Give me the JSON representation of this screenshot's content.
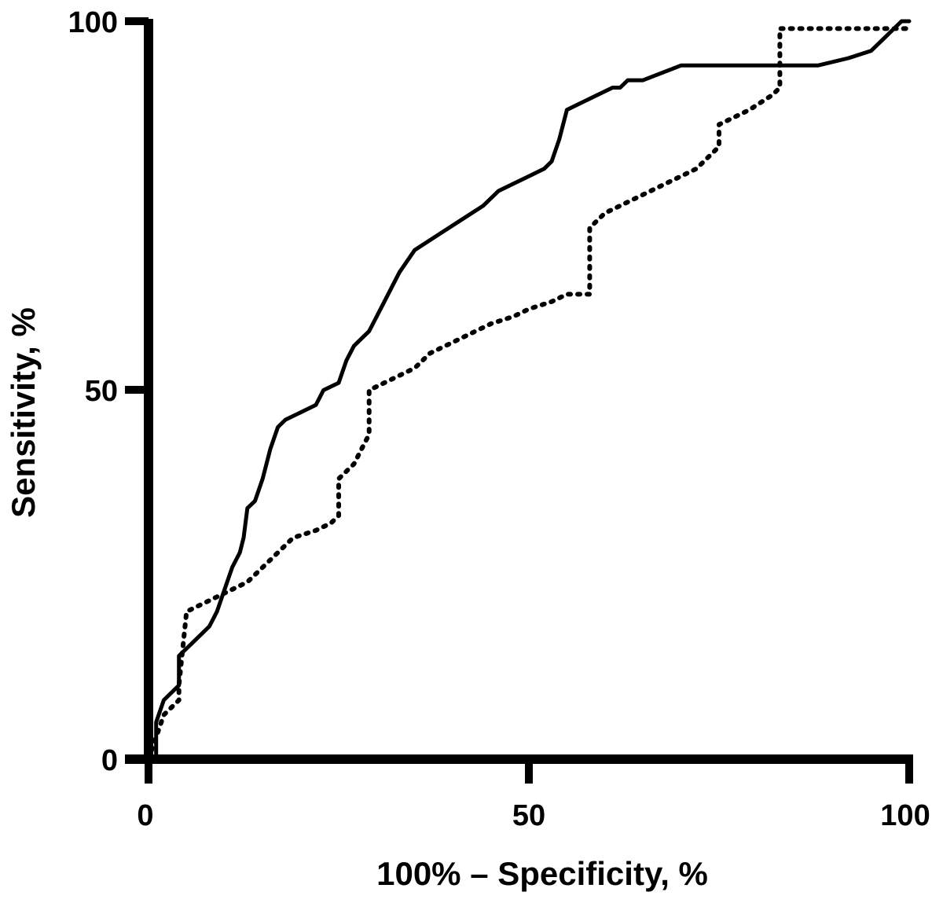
{
  "chart_data": {
    "type": "line",
    "title": "",
    "xlabel": "100% – Specificity, %",
    "ylabel": "Sensitivity, %",
    "xlim": [
      0,
      100
    ],
    "ylim": [
      0,
      100
    ],
    "xticks": [
      0,
      50,
      100
    ],
    "yticks": [
      0,
      50,
      100
    ],
    "xtick_labels": [
      "0",
      "50",
      "100"
    ],
    "ytick_labels": [
      "0",
      "50",
      "100"
    ],
    "grid": false,
    "legend": "none",
    "series": [
      {
        "name": "solid",
        "line_style": "solid",
        "color": "#000000",
        "x": [
          1,
          1,
          2,
          3,
          4,
          4,
          6,
          8,
          9,
          10,
          11,
          12,
          12.5,
          13,
          14,
          15,
          16,
          17,
          18,
          20,
          22,
          23,
          25,
          26,
          27,
          28,
          29,
          30,
          31,
          33,
          35,
          38,
          41,
          44,
          46,
          48,
          50,
          52,
          53,
          54,
          55,
          57,
          59,
          61,
          62,
          63,
          65,
          70,
          75,
          80,
          85,
          88,
          92,
          95,
          96,
          97,
          98,
          99,
          100
        ],
        "y": [
          0,
          5,
          8,
          9,
          10,
          14,
          16,
          18,
          20,
          23,
          26,
          28,
          30,
          34,
          35,
          38,
          42,
          45,
          46,
          47,
          48,
          50,
          51,
          54,
          56,
          57,
          58,
          60,
          62,
          66,
          69,
          71,
          73,
          75,
          77,
          78,
          79,
          80,
          81,
          84,
          88,
          89,
          90,
          91,
          91,
          92,
          92,
          94,
          94,
          94,
          94,
          94,
          95,
          96,
          97,
          98,
          99,
          100,
          100
        ]
      },
      {
        "name": "dotted",
        "line_style": "dotted",
        "color": "#000000",
        "x": [
          0,
          2,
          3,
          4,
          4,
          5,
          7,
          9,
          11,
          13,
          15,
          17,
          19,
          22,
          24,
          25,
          25,
          27,
          28,
          29,
          29,
          31,
          33,
          35,
          37,
          39,
          41,
          43,
          45,
          48,
          50,
          53,
          55,
          57,
          58,
          58,
          60,
          62,
          64,
          66,
          68,
          70,
          72,
          74,
          75,
          75,
          77,
          79,
          82,
          83,
          83,
          86,
          90,
          100
        ],
        "y": [
          0,
          6,
          7,
          8,
          10,
          20,
          21,
          22,
          23,
          24,
          26,
          28,
          30,
          31,
          32,
          33,
          38,
          40,
          42,
          44,
          50,
          51,
          52,
          53,
          55,
          56,
          57,
          58,
          59,
          60,
          61,
          62,
          63,
          63,
          63,
          72,
          74,
          75,
          76,
          77,
          78,
          79,
          80,
          82,
          83,
          86,
          87,
          88,
          90,
          91,
          99,
          99,
          99,
          99
        ]
      }
    ]
  }
}
